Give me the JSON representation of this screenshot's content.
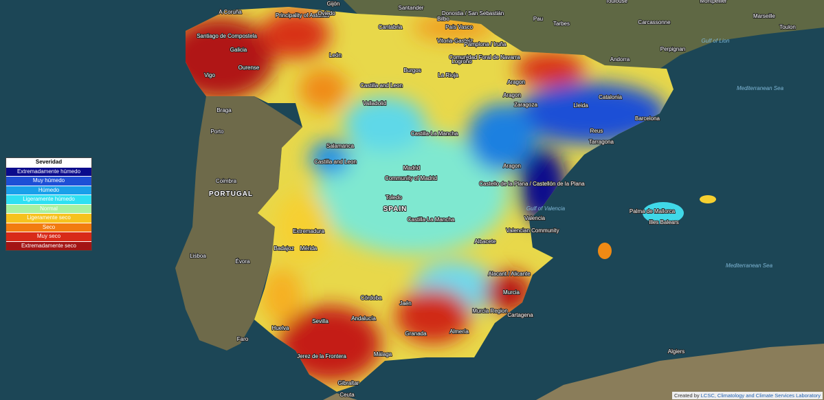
{
  "legend": {
    "title": "Severidad",
    "items": [
      {
        "label": "Extremadamente húmedo",
        "color": "#0a0a8c"
      },
      {
        "label": "Muy húmedo",
        "color": "#1d4fd6"
      },
      {
        "label": "Húmedo",
        "color": "#1aa0ea"
      },
      {
        "label": "Ligeramente húmedo",
        "color": "#2fe0f2"
      },
      {
        "label": "Normal",
        "color": "#a8f0a0"
      },
      {
        "label": "Ligeramente seco",
        "color": "#f6c21e"
      },
      {
        "label": "Seco",
        "color": "#f27c10"
      },
      {
        "label": "Muy seco",
        "color": "#d82a18"
      },
      {
        "label": "Extremadamente seco",
        "color": "#a31414"
      }
    ]
  },
  "places": [
    "A Coruña",
    "Santiago de Compostela",
    "Galicia",
    "Ourense",
    "Vigo",
    "Principality of Asturias",
    "Oviedo",
    "Gijón",
    "Santander",
    "Cantabria",
    "Bilbo",
    "País Vasco",
    "Donostia / San Sebastián",
    "Vitoria-Gasteiz",
    "Pamplona / Iruña",
    "Comunidad Foral de Navarra",
    "Logroño",
    "La Rioja",
    "León",
    "Burgos",
    "Castilla and Leon",
    "Valladolid",
    "Salamanca",
    "Castilla and Leon",
    "Aragon",
    "Zaragoza",
    "Aragon",
    "Aragon",
    "Catalonia",
    "Lleida",
    "Barcelona",
    "Reus",
    "Tarragona",
    "Andorra",
    "Castilla-La Mancha",
    "Madrid",
    "Community of Madrid",
    "Toledo",
    "SPAIN",
    "Castilla-La Mancha",
    "Extremadura",
    "Badajoz",
    "Mérida",
    "Castello de la Plana / Castellón de la Plana",
    "Valencia",
    "Valencian Community",
    "Albacete",
    "Alacant / Alicante",
    "Murcia",
    "Murcia Region",
    "Cartagena",
    "Córdoba",
    "Jaén",
    "Andalucía",
    "Sevilla",
    "Huelva",
    "Granada",
    "Almería",
    "Málaga",
    "Jerez de la Frontera",
    "Gibraltar",
    "Ceuta",
    "Palma de Mallorca",
    "Illes Balears",
    "PORTUGAL",
    "Braga",
    "Porto",
    "Coimbra",
    "Lisboa",
    "Évora",
    "Faro",
    "Toulouse",
    "Montpellier",
    "Marseille",
    "Toulon",
    "Carcassonne",
    "Perpignan",
    "Pau",
    "Tarbes",
    "Gulf of Lion",
    "Mediterranean Sea",
    "Gulf of Valencia",
    "Mediterranean Sea",
    "Algiers"
  ],
  "attribution": {
    "prefix": "Created by",
    "link": "LCSC, Climatology and Climate Services Laboratory"
  }
}
